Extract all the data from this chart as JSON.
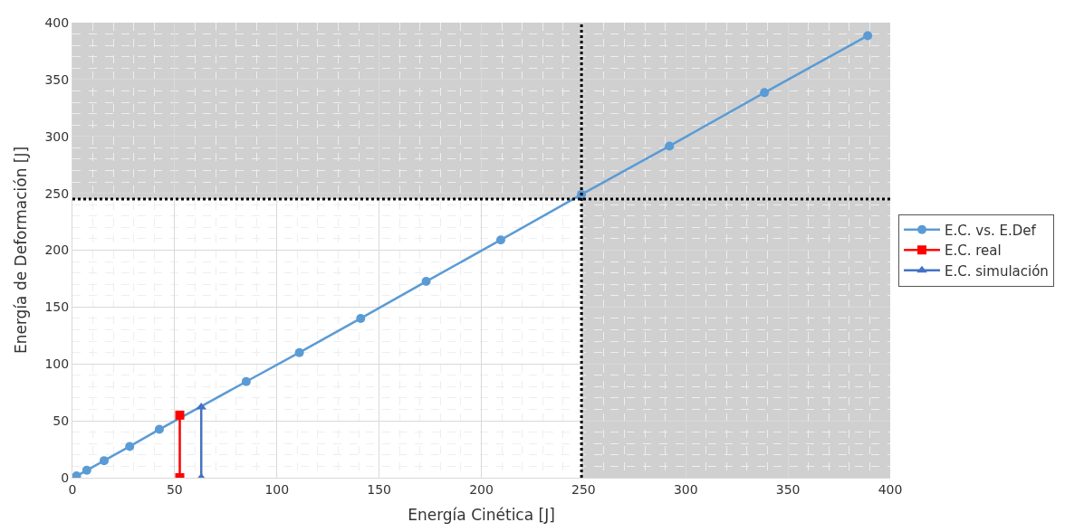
{
  "chart_data": {
    "type": "line",
    "xlabel": "Energía Cinética [J]",
    "ylabel": "Energía de Deformación [J]",
    "series": [
      {
        "name": "E.C. vs. E.Def",
        "color": "#5b9bd5",
        "marker": "circle",
        "x": [
          2,
          7,
          15.5,
          28,
          42.5,
          85,
          111,
          141,
          173,
          209.5,
          249,
          292,
          338.5,
          389
        ],
        "values": [
          1.5,
          6.5,
          15,
          27.5,
          42.5,
          84.5,
          110,
          140,
          172.5,
          209,
          249,
          291.5,
          338.5,
          388.5
        ]
      },
      {
        "name": "E.C. real",
        "color": "#ff0000",
        "marker": "square",
        "x": [
          52.5,
          52.5
        ],
        "values": [
          0,
          55
        ]
      },
      {
        "name": "E.C. simulación",
        "color": "#4472c4",
        "marker": "triangle",
        "x": [
          63,
          63
        ],
        "values": [
          0,
          62
        ]
      }
    ],
    "xlim": [
      0,
      400
    ],
    "ylim": [
      0,
      400
    ],
    "xticks": [
      0,
      50,
      100,
      150,
      200,
      250,
      300,
      350,
      400
    ],
    "yticks": [
      0,
      50,
      100,
      150,
      200,
      250,
      300,
      350,
      400
    ],
    "bands": [
      {
        "axis": "x",
        "from": 249,
        "to": 400,
        "color": "#d0d0d0"
      },
      {
        "axis": "y",
        "from": 245,
        "to": 400,
        "color": "#d0d0d0"
      }
    ],
    "ref_lines": [
      {
        "axis": "x",
        "value": 249,
        "color": "#000000",
        "line_style": "dotted"
      },
      {
        "axis": "y",
        "value": 245,
        "color": "#000000",
        "line_style": "dotted"
      }
    ],
    "grid": true,
    "legend": "right",
    "line_style": "solid"
  }
}
